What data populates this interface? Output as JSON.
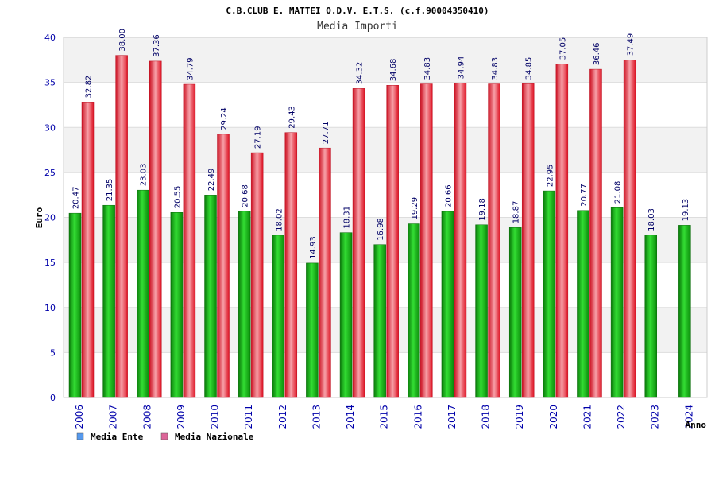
{
  "chart_data": {
    "type": "bar",
    "title": "C.B.CLUB E. MATTEI O.D.V. E.T.S. (c.f.90004350410)",
    "subtitle": "Media Importi",
    "xlabel": "Anno",
    "ylabel": "Euro",
    "ylim": [
      0,
      40
    ],
    "yticks": [
      0,
      5,
      10,
      15,
      20,
      25,
      30,
      35,
      40
    ],
    "grid": true,
    "legend_position": "bottom-left",
    "categories": [
      "2006",
      "2007",
      "2008",
      "2009",
      "2010",
      "2011",
      "2012",
      "2013",
      "2014",
      "2015",
      "2016",
      "2017",
      "2018",
      "2019",
      "2020",
      "2021",
      "2022",
      "2023",
      "2024"
    ],
    "series": [
      {
        "name": "Media Ente",
        "color": "#11aa11",
        "legend_color": "#5599ee",
        "values": [
          20.47,
          21.35,
          23.03,
          20.55,
          22.49,
          20.68,
          18.02,
          14.93,
          18.31,
          16.98,
          19.29,
          20.66,
          19.18,
          18.87,
          22.95,
          20.77,
          21.08,
          18.03,
          19.13
        ],
        "labels": [
          "20.47",
          "21.35",
          "23.03",
          "20.55",
          "22.49",
          "20.68",
          "18.02",
          "14.93",
          "18.31",
          "16.98",
          "19.29",
          "20.66",
          "19.18",
          "18.87",
          "22.95",
          "20.77",
          "21.08",
          "18.03",
          "19.13"
        ]
      },
      {
        "name": "Media Nazionale",
        "color": "#ee2233",
        "legend_color": "#dd6699",
        "values": [
          32.82,
          38.0,
          37.36,
          34.79,
          29.24,
          27.19,
          29.43,
          27.71,
          34.32,
          34.68,
          34.83,
          34.94,
          34.83,
          34.85,
          37.05,
          36.46,
          37.49,
          null,
          null
        ],
        "labels": [
          "32.82",
          "38.00",
          "37.36",
          "34.79",
          "29.24",
          "27.19",
          "29.43",
          "27.71",
          "34.32",
          "34.68",
          "34.83",
          "34.94",
          "34.83",
          "34.85",
          "37.05",
          "36.46",
          "37.49",
          null,
          null
        ]
      }
    ]
  }
}
